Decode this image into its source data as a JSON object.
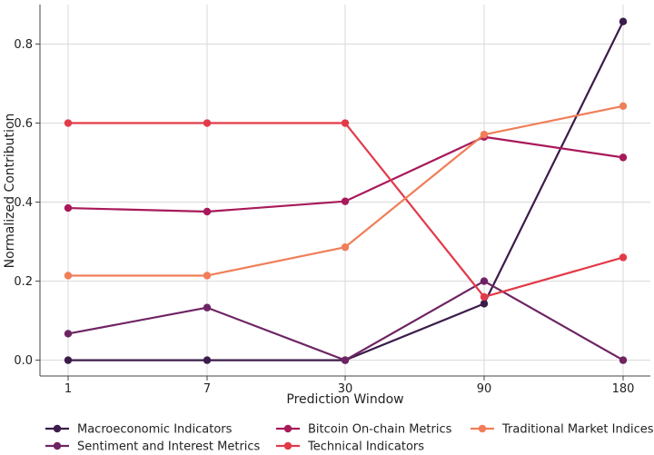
{
  "chart_data": {
    "type": "line",
    "title": "",
    "xlabel": "Prediction Window",
    "ylabel": "Normalized Contribution",
    "categories": [
      "1",
      "7",
      "30",
      "90",
      "180"
    ],
    "ylim": [
      -0.04,
      0.9
    ],
    "yticks": [
      0.0,
      0.2,
      0.4,
      0.6,
      0.8
    ],
    "yticks_labels": [
      "0.0",
      "0.2",
      "0.4",
      "0.6",
      "0.8"
    ],
    "grid": true,
    "legend_position": "bottom",
    "series": [
      {
        "name": "Macroeconomic Indicators",
        "color": "#3b1c4a",
        "values": [
          0.0,
          0.0,
          0.0,
          0.143,
          0.857
        ]
      },
      {
        "name": "Sentiment and Interest Metrics",
        "color": "#6e2463",
        "values": [
          0.067,
          0.133,
          0.0,
          0.2,
          0.0
        ]
      },
      {
        "name": "Bitcoin On-chain Metrics",
        "color": "#a8195a",
        "values": [
          0.385,
          0.376,
          0.402,
          0.565,
          0.513
        ]
      },
      {
        "name": "Technical Indicators",
        "color": "#e23a48",
        "values": [
          0.6,
          0.6,
          0.6,
          0.16,
          0.26
        ]
      },
      {
        "name": "Traditional Market Indices",
        "color": "#f07e58",
        "values": [
          0.214,
          0.214,
          0.286,
          0.571,
          0.643
        ]
      }
    ]
  }
}
